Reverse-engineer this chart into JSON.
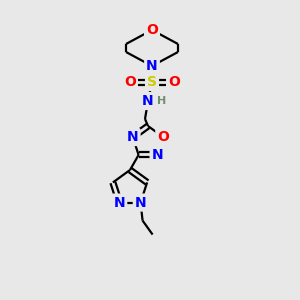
{
  "bg_color": "#e8e8e8",
  "bond_color": "#000000",
  "atom_colors": {
    "O": "#ff0000",
    "N": "#0000ff",
    "S": "#cccc00",
    "H": "#708f70",
    "C": "#000000"
  },
  "font_size_atom": 10,
  "fig_size": [
    3.0,
    3.0
  ],
  "dpi": 100
}
